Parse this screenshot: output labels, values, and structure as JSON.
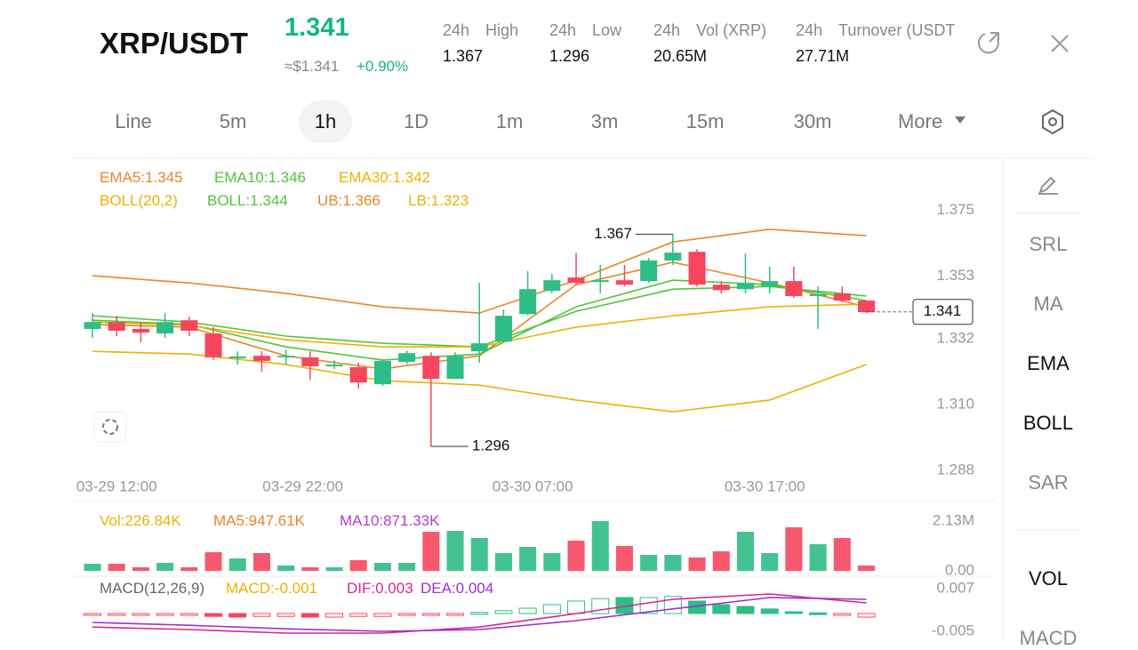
{
  "header": {
    "pair": "XRP/USDT",
    "price": "1.341",
    "approx": "≈$1.341",
    "change": "+0.90%",
    "stats": [
      {
        "period": "24h",
        "label": "High",
        "value": "1.367"
      },
      {
        "period": "24h",
        "label": "Low",
        "value": "1.296"
      },
      {
        "period": "24h",
        "label": "Vol (XRP)",
        "value": "20.65M"
      },
      {
        "period": "24h",
        "label": "Turnover (USDT",
        "value": "27.71M"
      }
    ]
  },
  "tabs": {
    "items": [
      "Line",
      "5m",
      "1h",
      "1D",
      "1m",
      "3m",
      "15m",
      "30m",
      "More"
    ],
    "active": 2
  },
  "legend": {
    "ema": [
      {
        "text": "EMA5:1.345",
        "color": "#e8862a"
      },
      {
        "text": "EMA10:1.346",
        "color": "#52c43a"
      },
      {
        "text": "EMA30:1.342",
        "color": "#f0b000"
      }
    ],
    "boll": [
      {
        "text": "BOLL(20,2)",
        "color": "#f0b000"
      },
      {
        "text": "BOLL:1.344",
        "color": "#52c43a"
      },
      {
        "text": "UB:1.366",
        "color": "#e8862a"
      },
      {
        "text": "LB:1.323",
        "color": "#f0b000"
      }
    ],
    "vol": [
      {
        "text": "Vol:226.84K",
        "color": "#f0b000"
      },
      {
        "text": "MA5:947.61K",
        "color": "#e8862a"
      },
      {
        "text": "MA10:871.33K",
        "color": "#b23ecf"
      }
    ],
    "macd": [
      {
        "text": "MACD(12,26,9)",
        "color": "#666666"
      },
      {
        "text": "MACD:-0.001",
        "color": "#f0b000"
      },
      {
        "text": "DIF:0.003",
        "color": "#d6288f"
      },
      {
        "text": "DEA:0.004",
        "color": "#9b32d0"
      }
    ]
  },
  "tools": {
    "items": [
      "SRL",
      "MA",
      "EMA",
      "BOLL",
      "SAR",
      "VOL",
      "MACD"
    ],
    "active": [
      2,
      3,
      5
    ]
  },
  "chart_data": [
    {
      "type": "candlestick",
      "up_color": "#2ebd85",
      "down_color": "#f6465d",
      "xlim": [
        -0.882,
        37.35
      ],
      "ylim": [
        1.2862,
        1.3903
      ],
      "xticks": [
        {
          "value": 1,
          "label": "03-29 12:00"
        },
        {
          "value": 8.7,
          "label": "03-29 22:00"
        },
        {
          "value": 18.2,
          "label": "03-30 07:00"
        },
        {
          "value": 27.8,
          "label": "03-30 17:00"
        }
      ],
      "yticks": [
        1.375,
        1.353,
        1.332,
        {
          "value": 1.31,
          "label": "1.310"
        },
        1.288
      ],
      "open": [
        1.3353,
        1.3376,
        1.3353,
        1.3338,
        1.3382,
        1.3338,
        1.3255,
        1.3263,
        1.3258,
        1.3258,
        1.3228,
        1.3225,
        1.3168,
        1.3243,
        1.3263,
        1.3186,
        1.3278,
        1.3311,
        1.3403,
        1.348,
        1.3525,
        1.351,
        1.3516,
        1.3513,
        1.3582,
        1.3611,
        1.3501,
        1.3486,
        1.3495,
        1.3513,
        1.3463,
        1.3472,
        1.3448
      ],
      "high": [
        1.3406,
        1.3397,
        1.3376,
        1.3406,
        1.3394,
        1.3359,
        1.3278,
        1.3278,
        1.3284,
        1.3278,
        1.3249,
        1.324,
        1.3252,
        1.3281,
        1.3275,
        1.3275,
        1.3507,
        1.3418,
        1.3546,
        1.3537,
        1.3608,
        1.3567,
        1.3567,
        1.359,
        1.367,
        1.362,
        1.3513,
        1.3605,
        1.3561,
        1.3561,
        1.3495,
        1.3495,
        1.3448
      ],
      "low": [
        1.3323,
        1.3329,
        1.3308,
        1.3323,
        1.3329,
        1.3249,
        1.3234,
        1.321,
        1.3234,
        1.3183,
        1.3219,
        1.3154,
        1.3162,
        1.3234,
        1.296,
        1.3186,
        1.324,
        1.3305,
        1.3397,
        1.3472,
        1.3501,
        1.3472,
        1.3495,
        1.3507,
        1.3567,
        1.3495,
        1.3472,
        1.3472,
        1.3472,
        1.3457,
        1.3353,
        1.3442,
        1.3406
      ],
      "close": [
        1.3376,
        1.3347,
        1.3341,
        1.3376,
        1.3347,
        1.3258,
        1.3261,
        1.3246,
        1.3263,
        1.3228,
        1.3234,
        1.3174,
        1.3246,
        1.3272,
        1.3186,
        1.3263,
        1.3305,
        1.3397,
        1.3486,
        1.3516,
        1.3507,
        1.3516,
        1.3501,
        1.3582,
        1.3608,
        1.3501,
        1.3483,
        1.3507,
        1.3513,
        1.3463,
        1.3469,
        1.3448,
        1.3409
      ],
      "series": [
        {
          "color": "#e8862a",
          "x": [
            0,
            4,
            8,
            12,
            16,
            20,
            24,
            28,
            32
          ],
          "values": [
            1.3531,
            1.3507,
            1.3472,
            1.3427,
            1.3406,
            1.3516,
            1.3644,
            1.3686,
            1.3665
          ]
        },
        {
          "color": "#52c43a",
          "x": [
            0,
            4,
            8,
            12,
            16,
            20,
            24,
            28,
            32
          ],
          "values": [
            1.3397,
            1.3376,
            1.3329,
            1.3305,
            1.3293,
            1.3412,
            1.3486,
            1.3495,
            1.3463
          ]
        },
        {
          "color": "#f0b000",
          "x": [
            0,
            4,
            8,
            12,
            16,
            20,
            24,
            28,
            32
          ],
          "values": [
            1.3278,
            1.3269,
            1.3234,
            1.318,
            1.3165,
            1.3115,
            1.3076,
            1.3115,
            1.3234
          ]
        },
        {
          "color": "#e8862a",
          "x": [
            0,
            4,
            8,
            12,
            16,
            20,
            24,
            28,
            32
          ],
          "values": [
            1.3368,
            1.3359,
            1.3263,
            1.3219,
            1.3263,
            1.3501,
            1.3576,
            1.3507,
            1.3427
          ]
        },
        {
          "color": "#52c43a",
          "x": [
            0,
            4,
            8,
            12,
            16,
            20,
            24,
            28,
            32
          ],
          "values": [
            1.3382,
            1.3368,
            1.3293,
            1.3249,
            1.3269,
            1.3427,
            1.3516,
            1.3501,
            1.3448
          ]
        },
        {
          "color": "#f0b000",
          "x": [
            0,
            4,
            8,
            12,
            16,
            20,
            24,
            28,
            32
          ],
          "values": [
            1.3376,
            1.3365,
            1.3317,
            1.3293,
            1.3293,
            1.3359,
            1.3397,
            1.3427,
            1.3436
          ]
        }
      ],
      "annotations": [
        {
          "text": "1.367",
          "x": 24,
          "y": 1.367,
          "side": "left"
        },
        {
          "text": "1.296",
          "x": 14,
          "y": 1.296,
          "side": "right"
        }
      ],
      "last_price": {
        "text": "1.341",
        "value": 1.341
      }
    },
    {
      "type": "bar",
      "ylim": [
        0,
        2130000
      ],
      "yticks": [
        {
          "value": 2130000,
          "label": "2.13M"
        },
        {
          "value": 0,
          "label": "0.00"
        }
      ],
      "values": [
        304000,
        304000,
        152000,
        342000,
        152000,
        798000,
        532000,
        760000,
        228000,
        152000,
        152000,
        456000,
        342000,
        342000,
        1672000,
        1710000,
        1406000,
        760000,
        1026000,
        760000,
        1292000,
        2128000,
        1064000,
        684000,
        684000,
        570000,
        836000,
        1672000,
        760000,
        1862000,
        1140000,
        1406000,
        226840
      ]
    },
    {
      "type": "macd",
      "ylim": [
        -0.005,
        0.007
      ],
      "yticks": [
        0.007,
        -0.005
      ],
      "up_color": "#2ebd85",
      "down_color": "#f6465d",
      "values": [
        -0.0005,
        -0.0005,
        -0.0003,
        -0.0005,
        -0.0005,
        -0.0008,
        -0.001,
        -0.0008,
        -0.0008,
        -0.001,
        -0.001,
        -0.0008,
        -0.0008,
        -0.0005,
        -0.0005,
        -0.0003,
        0.0003,
        0.0008,
        0.0015,
        0.0025,
        0.0035,
        0.0042,
        0.0045,
        0.0045,
        0.0048,
        0.0035,
        0.0025,
        0.002,
        0.0013,
        0.0005,
        0.0002,
        -0.0005,
        -0.001
      ],
      "hollow": [
        true,
        true,
        true,
        true,
        true,
        false,
        false,
        true,
        true,
        false,
        true,
        true,
        true,
        true,
        true,
        true,
        true,
        true,
        true,
        true,
        true,
        true,
        false,
        true,
        true,
        false,
        false,
        false,
        false,
        false,
        false,
        true,
        true
      ],
      "series": [
        {
          "color": "#d6288f",
          "x": [
            0,
            4,
            8,
            12,
            16,
            20,
            24,
            28,
            32
          ],
          "values": [
            -0.0038,
            -0.0045,
            -0.0055,
            -0.0055,
            -0.0038,
            0.0,
            0.004,
            0.0055,
            0.003
          ]
        },
        {
          "color": "#9b32d0",
          "x": [
            0,
            4,
            8,
            12,
            16,
            20,
            24,
            28,
            32
          ],
          "values": [
            -0.0025,
            -0.0033,
            -0.0043,
            -0.005,
            -0.0045,
            -0.002,
            0.0013,
            0.0045,
            0.004
          ]
        }
      ]
    }
  ]
}
